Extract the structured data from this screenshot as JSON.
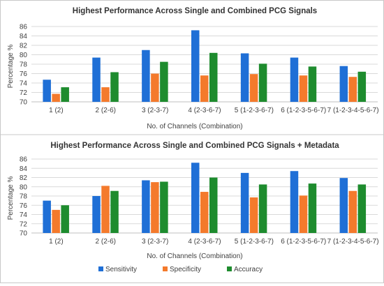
{
  "colors": {
    "sensitivity": "#1f6fd6",
    "specificity": "#f47a2c",
    "accuracy": "#1e8c2e",
    "grid": "#d9d9d9",
    "axis": "#7f7f7f",
    "text": "#404040"
  },
  "chart_data": [
    {
      "type": "bar",
      "title": "Highest Performance Across Single and Combined PCG Signals",
      "xlabel": "No. of Channels (Combination)",
      "ylabel": "Percentage %",
      "ylim": [
        70,
        86
      ],
      "yticks": [
        70,
        72,
        74,
        76,
        78,
        80,
        82,
        84,
        86
      ],
      "grid": true,
      "legend": "none",
      "categories": [
        "1 (2)",
        "2 (2-6)",
        "3 (2-3-7)",
        "4 (2-3-6-7)",
        "5 (1-2-3-6-7)",
        "6 (1-2-3-5-6-7)",
        "7 (1-2-3-4-5-6-7)"
      ],
      "series": [
        {
          "name": "Sensitivity",
          "color_key": "sensitivity",
          "values": [
            74.7,
            79.4,
            81.0,
            85.2,
            80.3,
            79.4,
            77.6
          ]
        },
        {
          "name": "Specificity",
          "color_key": "specificity",
          "values": [
            71.7,
            73.1,
            76.0,
            75.6,
            75.9,
            75.6,
            75.3
          ]
        },
        {
          "name": "Accuracy",
          "color_key": "accuracy",
          "values": [
            73.1,
            76.3,
            78.5,
            80.4,
            78.1,
            77.5,
            76.4
          ]
        }
      ]
    },
    {
      "type": "bar",
      "title": "Highest Performance Across Single and Combined PCG Signals + Metadata",
      "xlabel": "No. of Channels (Combination)",
      "ylabel": "Percentage %",
      "ylim": [
        70,
        86
      ],
      "yticks": [
        70,
        72,
        74,
        76,
        78,
        80,
        82,
        84,
        86
      ],
      "grid": true,
      "legend": "bottom",
      "categories": [
        "1 (2)",
        "2 (2-6)",
        "3 (2-3-7)",
        "4 (2-3-6-7)",
        "5 (1-2-3-6-7)",
        "6 (1-2-3-5-6-7)",
        "7 (1-2-3-4-5-6-7)"
      ],
      "series": [
        {
          "name": "Sensitivity",
          "color_key": "sensitivity",
          "values": [
            77.0,
            78.0,
            81.4,
            85.2,
            83.0,
            83.4,
            81.9
          ]
        },
        {
          "name": "Specificity",
          "color_key": "specificity",
          "values": [
            75.0,
            80.2,
            81.0,
            78.9,
            77.7,
            78.1,
            79.1
          ]
        },
        {
          "name": "Accuracy",
          "color_key": "accuracy",
          "values": [
            76.0,
            79.1,
            81.1,
            82.0,
            80.5,
            80.7,
            80.5
          ]
        }
      ]
    }
  ]
}
